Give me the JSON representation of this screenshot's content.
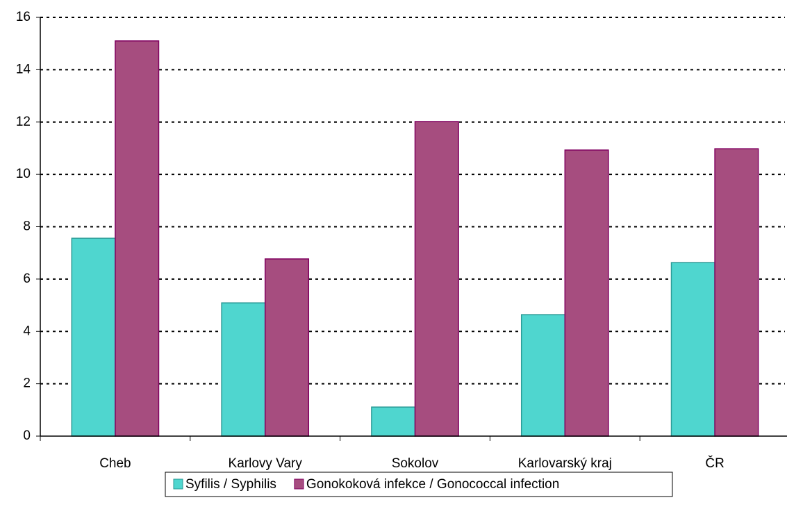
{
  "chart_data": {
    "type": "bar",
    "categories": [
      "Cheb",
      "Karlovy Vary",
      "Sokolov",
      "Karlovarský kraj",
      "ČR"
    ],
    "series": [
      {
        "name": "Syfilis / Syphilis",
        "color": "#4fd6cf",
        "values": [
          7.56,
          5.09,
          1.11,
          4.64,
          6.63
        ]
      },
      {
        "name": "Gonokoková infekce / Gonococcal infection",
        "color": "#a64d7f",
        "values": [
          15.1,
          6.77,
          12.02,
          10.93,
          10.98
        ]
      }
    ],
    "ylim": [
      0,
      16
    ],
    "yticks": [
      0,
      2,
      4,
      6,
      8,
      10,
      12,
      14,
      16
    ],
    "grid": true,
    "legend": "bottom"
  }
}
